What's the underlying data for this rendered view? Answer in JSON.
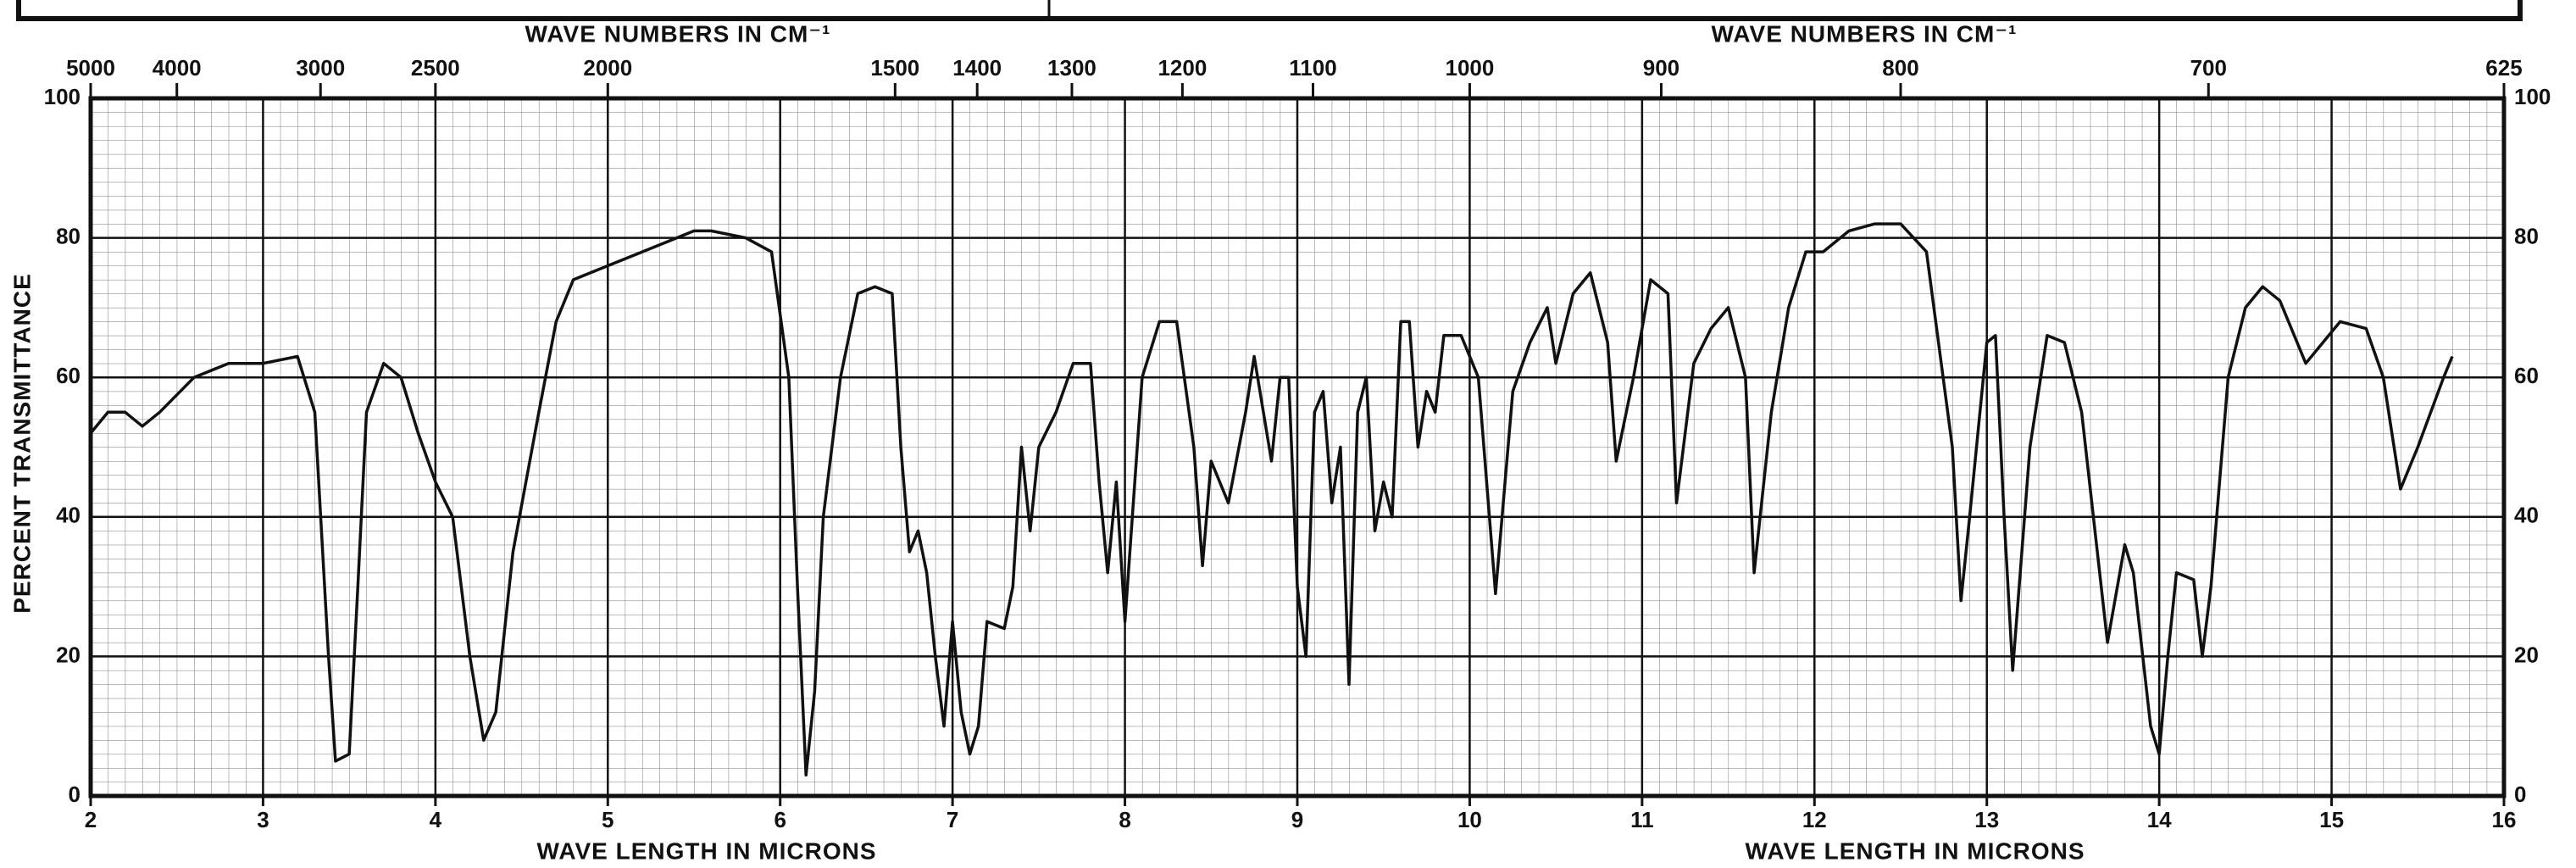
{
  "chart_data": {
    "type": "line",
    "x2label": "WAVE NUMBERS IN CM⁻¹",
    "xlabel": "WAVE LENGTH IN MICRONS",
    "ylabel": "PERCENT TRANSMITTANCE",
    "xlim": [
      2,
      16
    ],
    "xticks": [
      2,
      3,
      4,
      5,
      6,
      7,
      8,
      9,
      10,
      11,
      12,
      13,
      14,
      15,
      16
    ],
    "x2ticks": [
      5000,
      4000,
      3000,
      2500,
      2000,
      1500,
      1400,
      1300,
      1200,
      1100,
      1000,
      900,
      800,
      700,
      625
    ],
    "ylim": [
      0,
      100
    ],
    "yticks": [
      0,
      20,
      40,
      60,
      80,
      100
    ],
    "grid": true,
    "x": [
      2.0,
      2.1,
      2.2,
      2.3,
      2.4,
      2.6,
      2.8,
      3.0,
      3.2,
      3.3,
      3.38,
      3.42,
      3.5,
      3.55,
      3.6,
      3.7,
      3.8,
      3.9,
      4.0,
      4.1,
      4.2,
      4.28,
      4.35,
      4.45,
      4.6,
      4.7,
      4.8,
      5.0,
      5.2,
      5.4,
      5.5,
      5.6,
      5.8,
      5.95,
      6.05,
      6.1,
      6.15,
      6.2,
      6.25,
      6.35,
      6.45,
      6.55,
      6.65,
      6.7,
      6.75,
      6.8,
      6.85,
      6.9,
      6.95,
      7.0,
      7.05,
      7.1,
      7.15,
      7.2,
      7.3,
      7.35,
      7.4,
      7.45,
      7.5,
      7.6,
      7.7,
      7.8,
      7.85,
      7.9,
      7.95,
      8.0,
      8.1,
      8.2,
      8.3,
      8.4,
      8.45,
      8.5,
      8.6,
      8.7,
      8.75,
      8.85,
      8.9,
      8.95,
      9.0,
      9.05,
      9.1,
      9.15,
      9.2,
      9.25,
      9.3,
      9.35,
      9.4,
      9.45,
      9.5,
      9.55,
      9.6,
      9.65,
      9.7,
      9.75,
      9.8,
      9.85,
      9.95,
      10.05,
      10.15,
      10.25,
      10.35,
      10.45,
      10.5,
      10.6,
      10.7,
      10.8,
      10.85,
      10.95,
      11.05,
      11.15,
      11.2,
      11.3,
      11.4,
      11.5,
      11.6,
      11.65,
      11.75,
      11.85,
      11.95,
      12.05,
      12.2,
      12.35,
      12.5,
      12.65,
      12.8,
      12.85,
      12.9,
      13.0,
      13.05,
      13.1,
      13.15,
      13.25,
      13.35,
      13.45,
      13.55,
      13.7,
      13.8,
      13.85,
      13.95,
      14.0,
      14.05,
      14.1,
      14.2,
      14.25,
      14.3,
      14.4,
      14.5,
      14.6,
      14.7,
      14.8,
      14.85,
      14.95,
      15.05,
      15.2,
      15.3,
      15.4,
      15.5,
      15.65,
      15.7
    ],
    "series": [
      {
        "color": "#111111",
        "values": [
          52,
          55,
          55,
          53,
          55,
          60,
          62,
          62,
          63,
          55,
          20,
          5,
          6,
          30,
          55,
          62,
          60,
          52,
          45,
          40,
          20,
          8,
          12,
          35,
          55,
          68,
          74,
          76,
          78,
          80,
          81,
          81,
          80,
          78,
          60,
          30,
          3,
          15,
          40,
          60,
          72,
          73,
          72,
          50,
          35,
          38,
          32,
          20,
          10,
          25,
          12,
          6,
          10,
          25,
          24,
          30,
          50,
          38,
          50,
          55,
          62,
          62,
          45,
          32,
          45,
          25,
          60,
          68,
          68,
          50,
          33,
          48,
          42,
          55,
          63,
          48,
          60,
          60,
          30,
          20,
          55,
          58,
          42,
          50,
          16,
          55,
          60,
          38,
          45,
          40,
          68,
          68,
          50,
          58,
          55,
          66,
          66,
          60,
          29,
          58,
          65,
          70,
          62,
          72,
          75,
          65,
          48,
          60,
          74,
          72,
          42,
          62,
          67,
          70,
          60,
          32,
          55,
          70,
          78,
          78,
          81,
          82,
          82,
          78,
          50,
          28,
          40,
          65,
          66,
          40,
          18,
          50,
          66,
          65,
          55,
          22,
          36,
          32,
          10,
          6,
          20,
          32,
          31,
          20,
          30,
          60,
          70,
          73,
          71,
          65,
          62,
          65,
          68,
          67,
          60,
          44,
          50,
          60,
          63
        ]
      }
    ]
  }
}
